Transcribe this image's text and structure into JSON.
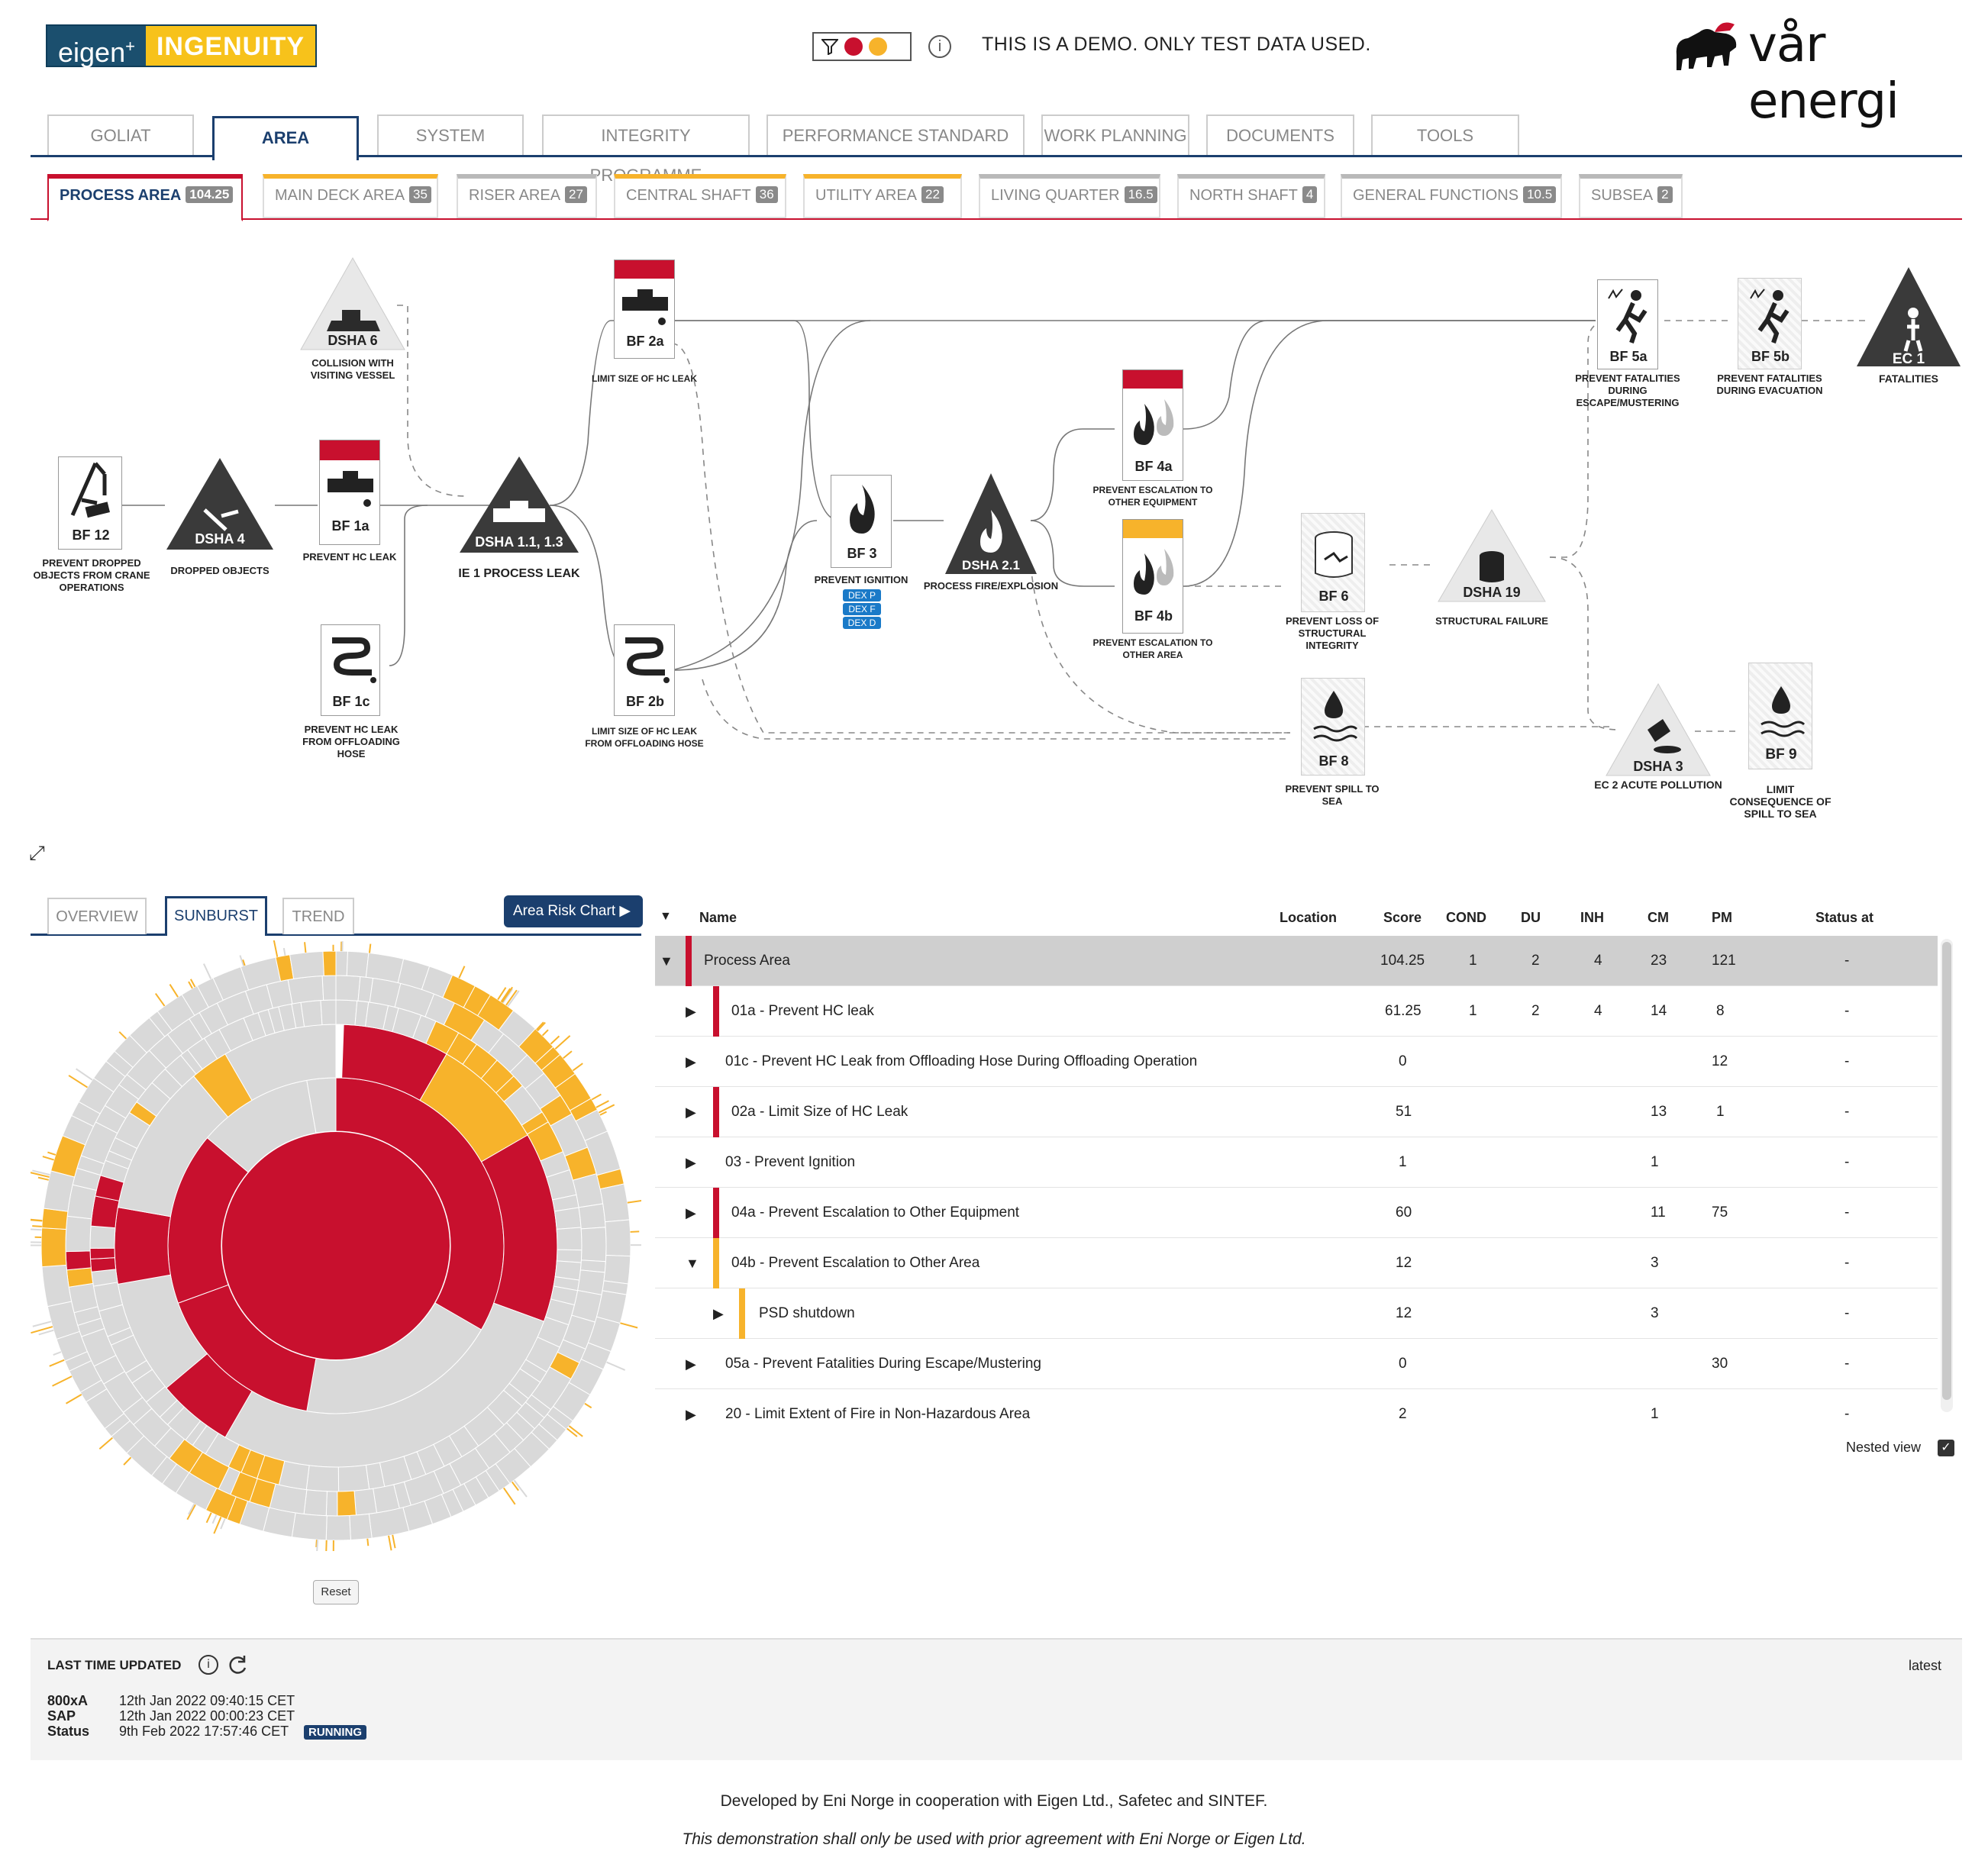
{
  "header": {
    "logo_left_a": "eigen",
    "logo_left_sup": "+",
    "logo_left_b": "INGENUITY",
    "demo_notice": "THIS IS A DEMO. ONLY TEST DATA USED.",
    "logo_right": "vår energi",
    "filter_icon": "filter-icon",
    "info_icon": "info-icon"
  },
  "main_tabs": [
    "GOLIAT",
    "AREA",
    "SYSTEM",
    "INTEGRITY PROGRAMME",
    "PERFORMANCE STANDARD",
    "WORK PLANNING",
    "DOCUMENTS",
    "TOOLS"
  ],
  "area_tabs": [
    {
      "label": "PROCESS AREA",
      "badge": "104.25"
    },
    {
      "label": "MAIN DECK AREA",
      "badge": "35"
    },
    {
      "label": "RISER AREA",
      "badge": "27"
    },
    {
      "label": "CENTRAL SHAFT",
      "badge": "36"
    },
    {
      "label": "UTILITY AREA",
      "badge": "22"
    },
    {
      "label": "LIVING QUARTER",
      "badge": "16.5"
    },
    {
      "label": "NORTH SHAFT",
      "badge": "4"
    },
    {
      "label": "GENERAL FUNCTIONS",
      "badge": "10.5"
    },
    {
      "label": "SUBSEA",
      "badge": "2"
    }
  ],
  "diagram": {
    "bf12": {
      "id": "BF 12",
      "label": "PREVENT DROPPED OBJECTS FROM CRANE OPERATIONS"
    },
    "dsha4": {
      "id": "DSHA 4",
      "label": "DROPPED OBJECTS"
    },
    "dsha6": {
      "id": "DSHA 6",
      "label": "COLLISION WITH VISITING VESSEL"
    },
    "bf1a": {
      "id": "BF 1a",
      "label": "PREVENT HC LEAK"
    },
    "bf1c": {
      "id": "BF 1c",
      "label": "PREVENT HC LEAK FROM OFFLOADING HOSE"
    },
    "dsha11": {
      "id": "DSHA 1.1, 1.3",
      "label": "IE 1 PROCESS LEAK"
    },
    "bf2a": {
      "id": "BF 2a",
      "label": "LIMIT SIZE OF HC LEAK"
    },
    "bf2b": {
      "id": "BF 2b",
      "label": "LIMIT SIZE OF HC LEAK FROM OFFLOADING HOSE"
    },
    "bf3": {
      "id": "BF 3",
      "label": "PREVENT IGNITION",
      "tags": [
        "DEX P",
        "DEX F",
        "DEX D"
      ]
    },
    "dsha21": {
      "id": "DSHA 2.1",
      "label": "PROCESS FIRE/EXPLOSION"
    },
    "bf4a": {
      "id": "BF 4a",
      "label": "PREVENT ESCALATION TO OTHER EQUIPMENT"
    },
    "bf4b": {
      "id": "BF 4b",
      "label": "PREVENT ESCALATION TO OTHER AREA"
    },
    "bf6": {
      "id": "BF 6",
      "label": "PREVENT LOSS OF STRUCTURAL INTEGRITY"
    },
    "dsha19": {
      "id": "DSHA 19",
      "label": "STRUCTURAL FAILURE"
    },
    "bf8": {
      "id": "BF 8",
      "label": "PREVENT SPILL TO SEA"
    },
    "dsha3": {
      "id": "DSHA 3",
      "label": "EC 2 ACUTE POLLUTION"
    },
    "bf9": {
      "id": "BF 9",
      "label": "LIMIT CONSEQUENCE OF SPILL TO SEA"
    },
    "bf5a": {
      "id": "BF 5a",
      "label": "PREVENT FATALITIES DURING ESCAPE/MUSTERING"
    },
    "bf5b": {
      "id": "BF 5b",
      "label": "PREVENT FATALITIES DURING EVACUATION"
    },
    "ec1": {
      "id": "EC 1",
      "label": "FATALITIES"
    }
  },
  "lower_tabs": [
    "OVERVIEW",
    "SUNBURST",
    "TREND"
  ],
  "area_risk_chart_label": "Area Risk Chart ▶",
  "reset_label": "Reset",
  "table": {
    "headers": [
      "Name",
      "Location",
      "Score",
      "COND",
      "DU",
      "INH",
      "CM",
      "PM",
      "Status at"
    ],
    "rows": [
      {
        "name": "Process Area",
        "score": "104.25",
        "cond": "1",
        "du": "2",
        "inh": "4",
        "cm": "23",
        "pm": "121",
        "status": "-"
      },
      {
        "name": "01a - Prevent HC leak",
        "score": "61.25",
        "cond": "1",
        "du": "2",
        "inh": "4",
        "cm": "14",
        "pm": "8",
        "status": "-"
      },
      {
        "name": "01c - Prevent HC Leak from Offloading Hose During Offloading Operation",
        "score": "0",
        "cond": "",
        "du": "",
        "inh": "",
        "cm": "",
        "pm": "12",
        "status": "-"
      },
      {
        "name": "02a - Limit Size of HC Leak",
        "score": "51",
        "cond": "",
        "du": "",
        "inh": "",
        "cm": "13",
        "pm": "1",
        "status": "-"
      },
      {
        "name": "03 - Prevent Ignition",
        "score": "1",
        "cond": "",
        "du": "",
        "inh": "",
        "cm": "1",
        "pm": "",
        "status": "-"
      },
      {
        "name": "04a - Prevent Escalation to Other Equipment",
        "score": "60",
        "cond": "",
        "du": "",
        "inh": "",
        "cm": "11",
        "pm": "75",
        "status": "-"
      },
      {
        "name": "04b - Prevent Escalation to Other Area",
        "score": "12",
        "cond": "",
        "du": "",
        "inh": "",
        "cm": "3",
        "pm": "",
        "status": "-"
      },
      {
        "name": "PSD shutdown",
        "score": "12",
        "cond": "",
        "du": "",
        "inh": "",
        "cm": "3",
        "pm": "",
        "status": "-"
      },
      {
        "name": "05a - Prevent Fatalities During Escape/Mustering",
        "score": "0",
        "cond": "",
        "du": "",
        "inh": "",
        "cm": "",
        "pm": "30",
        "status": "-"
      },
      {
        "name": "20 - Limit Extent of Fire in Non-Hazardous Area",
        "score": "2",
        "cond": "",
        "du": "",
        "inh": "",
        "cm": "1",
        "pm": "",
        "status": "-"
      }
    ],
    "nested_view_label": "Nested view",
    "sort_arrow": "▼"
  },
  "footer": {
    "last_updated_label": "LAST TIME UPDATED",
    "latest_label": "latest",
    "sources": [
      {
        "name": "800xA",
        "time": "12th Jan 2022 09:40:15 CET"
      },
      {
        "name": "SAP",
        "time": "12th Jan 2022 00:00:23 CET"
      },
      {
        "name": "Status",
        "time": "9th Feb 2022 17:57:46 CET",
        "badge": "RUNNING"
      }
    ],
    "developed_by": "Developed by Eni Norge in cooperation with Eigen Ltd., Safetec and SINTEF.",
    "disclaimer": "This demonstration shall only be used with prior agreement with Eni Norge or Eigen Ltd."
  },
  "colors": {
    "red": "#c8102e",
    "orange": "#f7b32b",
    "navy": "#1b3f6e",
    "gray": "#d9d9d9"
  }
}
